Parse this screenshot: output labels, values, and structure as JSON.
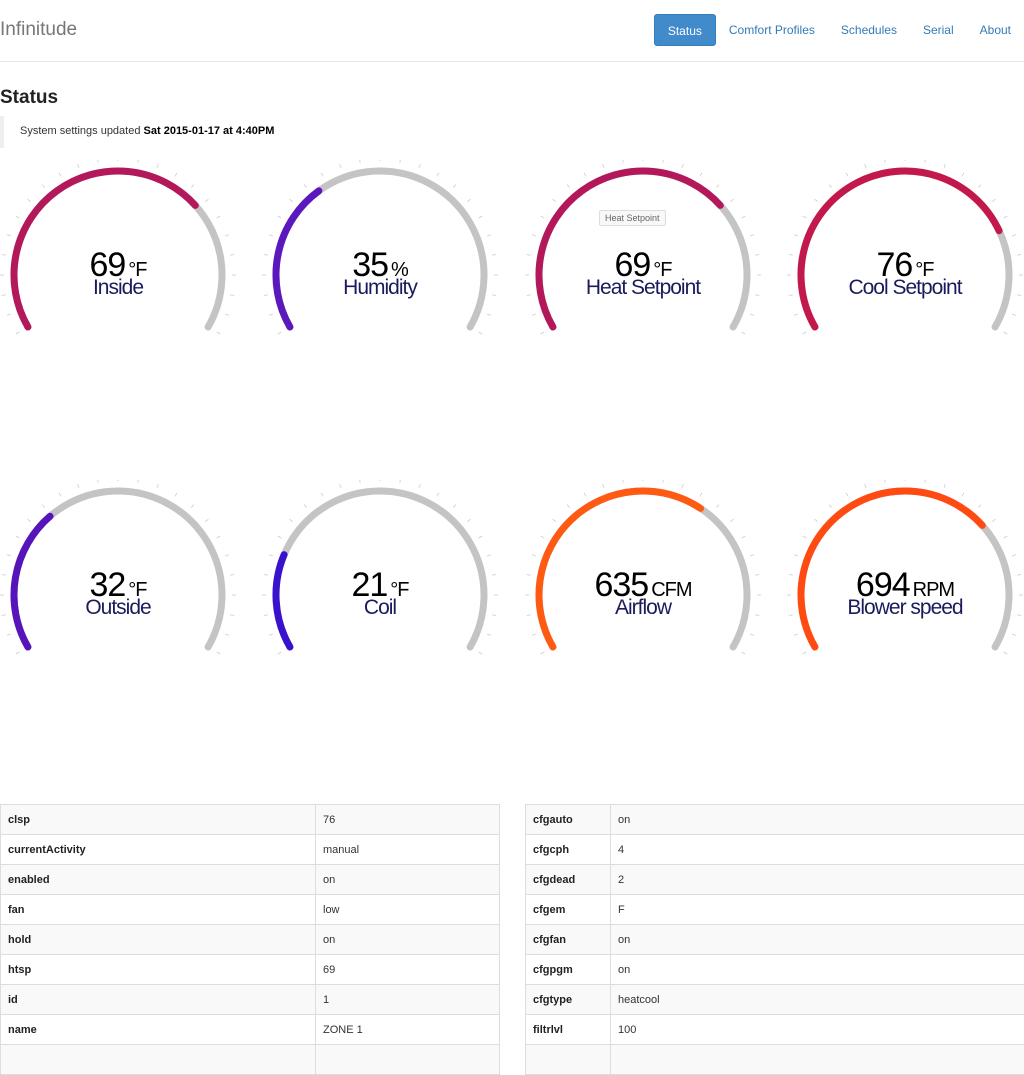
{
  "navbar": {
    "brand": "Infinitude",
    "items": [
      {
        "label": "Status",
        "active": true
      },
      {
        "label": "Comfort Profiles"
      },
      {
        "label": "Schedules"
      },
      {
        "label": "Serial"
      },
      {
        "label": "About"
      }
    ]
  },
  "page": {
    "title": "Status",
    "notice_prefix": "System settings updated",
    "notice_time": "Sat 2015-01-17 at 4:40PM"
  },
  "tooltip": "Heat Setpoint",
  "gauges": [
    {
      "value": "69",
      "unit": "°F",
      "label": "Inside",
      "fill": 0.7,
      "color": "#b3185a"
    },
    {
      "value": "35",
      "unit": "%",
      "label": "Humidity",
      "fill": 0.35,
      "color": "#5a18bd"
    },
    {
      "value": "69",
      "unit": "°F",
      "label": "Heat Setpoint",
      "fill": 0.7,
      "color": "#b3185a"
    },
    {
      "value": "76",
      "unit": "°F",
      "label": "Cool Setpoint",
      "fill": 0.77,
      "color": "#c3184c"
    },
    {
      "value": "32",
      "unit": "°F",
      "label": "Outside",
      "fill": 0.33,
      "color": "#5614bb"
    },
    {
      "value": "21",
      "unit": "°F",
      "label": "Coil",
      "fill": 0.22,
      "color": "#3812cc"
    },
    {
      "value": "635",
      "unit": "CFM",
      "label": "Airflow",
      "fill": 0.64,
      "color": "#ff5a12"
    },
    {
      "value": "694",
      "unit": "RPM",
      "label": "Blower speed",
      "fill": 0.7,
      "color": "#ff4a12"
    }
  ],
  "zone_table": [
    [
      "clsp",
      "76"
    ],
    [
      "currentActivity",
      "manual"
    ],
    [
      "enabled",
      "on"
    ],
    [
      "fan",
      "low"
    ],
    [
      "hold",
      "on"
    ],
    [
      "htsp",
      "69"
    ],
    [
      "id",
      "1"
    ],
    [
      "name",
      "ZONE 1"
    ]
  ],
  "config_table": [
    [
      "cfgauto",
      "on"
    ],
    [
      "cfgcph",
      "4"
    ],
    [
      "cfgdead",
      "2"
    ],
    [
      "cfgem",
      "F"
    ],
    [
      "cfgfan",
      "on"
    ],
    [
      "cfgpgm",
      "on"
    ],
    [
      "cfgtype",
      "heatcool"
    ],
    [
      "filtrlvl",
      "100"
    ]
  ]
}
